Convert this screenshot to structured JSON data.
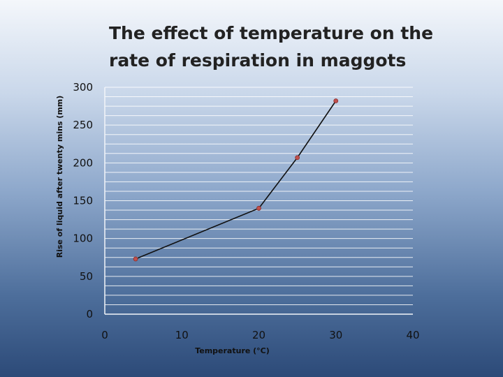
{
  "chart_data": {
    "type": "line",
    "title": "The effect of temperature on the rate of respiration in maggots",
    "xlabel": "Temperature (°C)",
    "ylabel": "Rise of liquid after  twenty mins (mm)",
    "xlim": [
      0,
      40
    ],
    "ylim": [
      0,
      300
    ],
    "x_ticks": [
      0,
      10,
      20,
      30,
      40
    ],
    "y_ticks": [
      0,
      50,
      100,
      150,
      200,
      250,
      300
    ],
    "y_minor_step": 12.5,
    "grid": true,
    "series": [
      {
        "name": "Rise of liquid",
        "x": [
          4,
          20,
          25,
          30
        ],
        "y": [
          73,
          140,
          207,
          282
        ]
      }
    ]
  },
  "colors": {
    "line": "#111111",
    "marker": "#c0504d",
    "grid": "#ffffff"
  }
}
